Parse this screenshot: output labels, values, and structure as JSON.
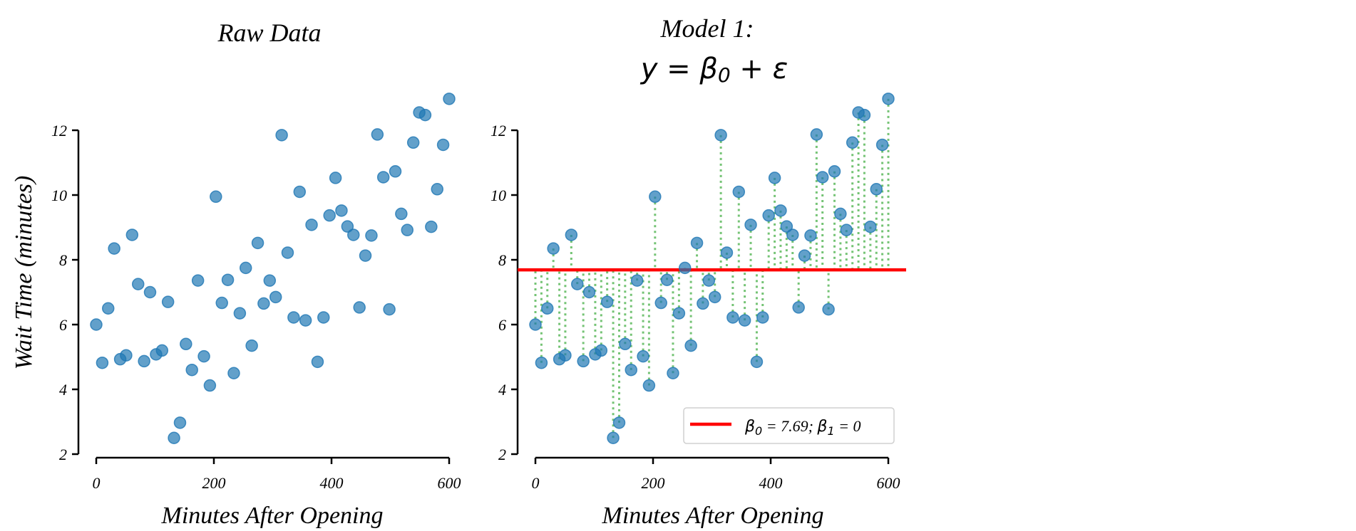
{
  "chart_data": [
    {
      "type": "scatter",
      "title": "Raw Data",
      "xlabel": "Minutes After Opening",
      "ylabel": "Wait Time (minutes)",
      "xlim": [
        0,
        600
      ],
      "ylim": [
        2,
        12
      ],
      "xticks": [
        "0",
        "200",
        "400",
        "600"
      ],
      "yticks": [
        "2",
        "4",
        "6",
        "8",
        "10",
        "12"
      ],
      "grid": false,
      "point_color": "#1f77b4"
    },
    {
      "type": "scatter",
      "title": "Model 1:",
      "subtitle": "y = β0 + ε",
      "xlabel": "Minutes After Opening",
      "xlim": [
        0,
        600
      ],
      "ylim": [
        2,
        12
      ],
      "xticks": [
        "0",
        "200",
        "400",
        "600"
      ],
      "yticks": [
        "2",
        "4",
        "6",
        "8",
        "10",
        "12"
      ],
      "grid": false,
      "point_color": "#1f77b4",
      "fit_line": {
        "beta0": 7.69,
        "beta1": 0,
        "color": "#ff0000"
      },
      "residual_color": "#5cb85c",
      "legend": {
        "label": "β0 = 7.69; β1 = 0",
        "placement": "lower-right"
      }
    }
  ],
  "points": {
    "x": [
      0,
      10.2,
      20.3,
      30.5,
      40.7,
      50.8,
      61.0,
      71.2,
      81.4,
      91.5,
      101.7,
      111.9,
      122.0,
      132.2,
      142.4,
      152.5,
      162.7,
      172.9,
      183.1,
      193.2,
      203.4,
      213.6,
      223.7,
      233.9,
      244.1,
      254.2,
      264.4,
      274.6,
      284.7,
      294.9,
      305.1,
      315.3,
      325.4,
      335.6,
      345.8,
      355.9,
      366.1,
      376.3,
      386.4,
      396.6,
      406.8,
      416.9,
      427.1,
      437.3,
      447.5,
      457.6,
      467.8,
      478.0,
      488.1,
      498.3,
      508.5,
      518.6,
      528.8,
      539.0,
      549.2,
      559.3,
      569.5,
      579.7,
      589.8,
      600
    ],
    "y": [
      6.0,
      4.82,
      6.5,
      8.35,
      4.93,
      5.05,
      8.77,
      7.25,
      4.87,
      7.0,
      5.08,
      5.2,
      6.7,
      2.5,
      2.97,
      5.4,
      4.6,
      7.36,
      5.02,
      4.12,
      9.95,
      6.67,
      7.38,
      4.5,
      6.35,
      7.75,
      5.35,
      8.52,
      6.65,
      7.36,
      6.85,
      11.85,
      8.22,
      6.22,
      10.1,
      6.13,
      9.08,
      4.85,
      6.22,
      9.37,
      10.53,
      9.52,
      9.03,
      8.77,
      6.53,
      8.13,
      8.75,
      11.87,
      10.55,
      6.47,
      10.73,
      9.42,
      8.92,
      11.62,
      12.55,
      12.47,
      9.02,
      10.18,
      11.55,
      12.97
    ]
  }
}
